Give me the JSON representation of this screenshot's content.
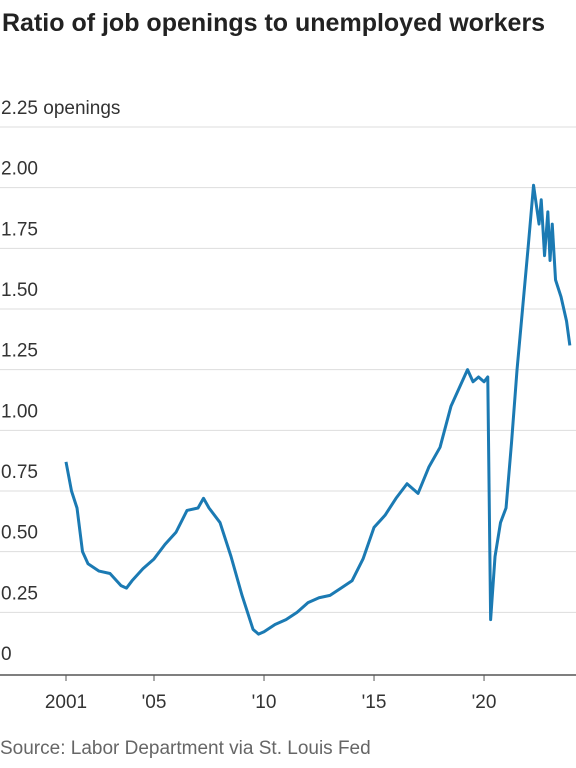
{
  "chart_data": {
    "type": "line",
    "title": "Ratio of job openings to unemployed workers",
    "source": "Source: Labor Department via St. Louis Fed",
    "color": "#1b7ab3",
    "grid": true,
    "xlim": [
      1998,
      2024.18
    ],
    "ylim": [
      0,
      2.25
    ],
    "xticks": [
      {
        "value": 2001,
        "label": "2001"
      },
      {
        "value": 2005,
        "label": "'05"
      },
      {
        "value": 2010,
        "label": "'10"
      },
      {
        "value": 2015,
        "label": "'15"
      },
      {
        "value": 2020,
        "label": "'20"
      }
    ],
    "yticks": [
      0,
      {
        "value": 0.25,
        "label": "0.25"
      },
      {
        "value": 0.5,
        "label": "0.50"
      },
      {
        "value": 0.75,
        "label": "0.75"
      },
      {
        "value": 1,
        "label": "1.00"
      },
      {
        "value": 1.25,
        "label": "1.25"
      },
      {
        "value": 1.5,
        "label": "1.50"
      },
      {
        "value": 1.75,
        "label": "1.75"
      },
      {
        "value": 2,
        "label": "2.00"
      },
      {
        "value": 2.25,
        "label": "2.25 openings"
      }
    ],
    "x": [
      2001.0,
      2001.25,
      2001.5,
      2001.75,
      2002.0,
      2002.5,
      2003.0,
      2003.5,
      2003.75,
      2004.0,
      2004.5,
      2005.0,
      2005.5,
      2006.0,
      2006.5,
      2007.0,
      2007.25,
      2007.5,
      2008.0,
      2008.5,
      2009.0,
      2009.5,
      2009.75,
      2010.0,
      2010.5,
      2011.0,
      2011.5,
      2012.0,
      2012.5,
      2013.0,
      2013.5,
      2014.0,
      2014.5,
      2015.0,
      2015.5,
      2016.0,
      2016.5,
      2017.0,
      2017.5,
      2018.0,
      2018.5,
      2019.0,
      2019.25,
      2019.5,
      2019.75,
      2020.0,
      2020.17,
      2020.3,
      2020.5,
      2020.75,
      2021.0,
      2021.25,
      2021.5,
      2021.75,
      2022.0,
      2022.25,
      2022.5,
      2022.6,
      2022.75,
      2022.9,
      2023.0,
      2023.1,
      2023.25,
      2023.5,
      2023.75,
      2023.9
    ],
    "values": [
      0.87,
      0.75,
      0.68,
      0.5,
      0.45,
      0.42,
      0.41,
      0.36,
      0.35,
      0.38,
      0.43,
      0.47,
      0.53,
      0.58,
      0.67,
      0.68,
      0.72,
      0.68,
      0.62,
      0.48,
      0.32,
      0.18,
      0.16,
      0.17,
      0.2,
      0.22,
      0.25,
      0.29,
      0.31,
      0.32,
      0.35,
      0.38,
      0.47,
      0.6,
      0.65,
      0.72,
      0.78,
      0.74,
      0.85,
      0.93,
      1.1,
      1.2,
      1.25,
      1.2,
      1.22,
      1.2,
      1.22,
      0.22,
      0.48,
      0.62,
      0.68,
      0.95,
      1.25,
      1.5,
      1.75,
      2.01,
      1.85,
      1.95,
      1.72,
      1.9,
      1.7,
      1.85,
      1.62,
      1.55,
      1.45,
      1.35
    ]
  }
}
